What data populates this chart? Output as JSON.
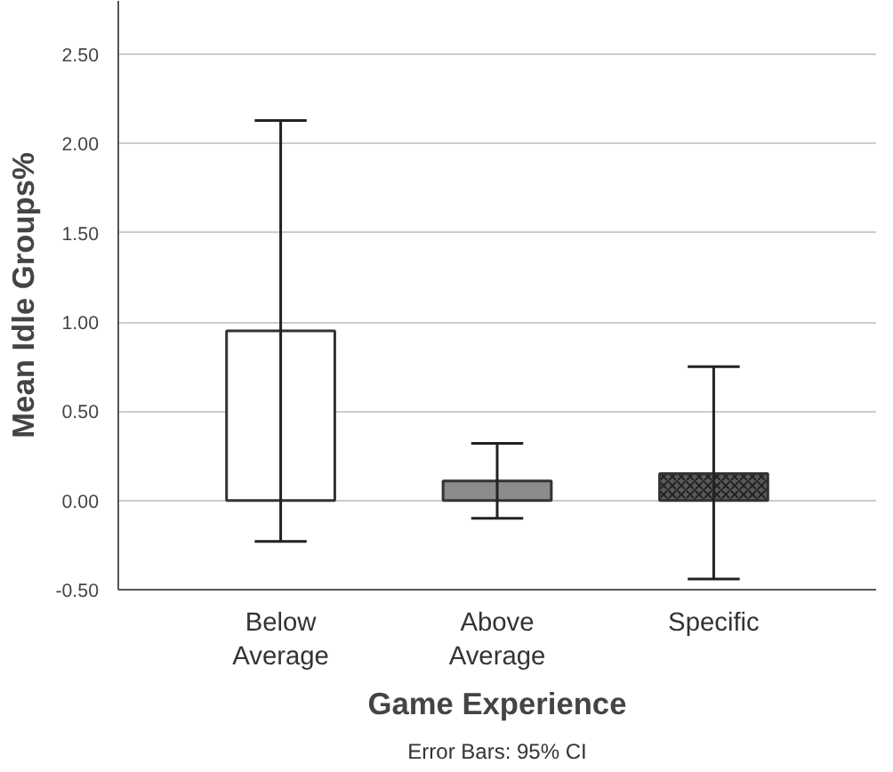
{
  "chart_data": {
    "type": "bar",
    "categories": [
      "Below\nAverage",
      "Above\nAverage",
      "Specific"
    ],
    "values": [
      0.95,
      0.11,
      0.15
    ],
    "colors": [
      "#ffffff",
      "#8c8c8c",
      "#595959"
    ],
    "errors": [
      [
        -0.23,
        2.13
      ],
      [
        -0.1,
        0.32
      ],
      [
        -0.44,
        0.75
      ]
    ],
    "xlabel": "Game Experience",
    "ylabel": "Mean Idle Groups%",
    "ylim": [
      -0.5,
      2.8
    ],
    "yticks": [
      {
        "value": -0.5,
        "label": "-0.50"
      },
      {
        "value": 0,
        "label": "0.00"
      },
      {
        "value": 0.5,
        "label": "0.50"
      },
      {
        "value": 1,
        "label": "1.00"
      },
      {
        "value": 1.5,
        "label": "1.50"
      },
      {
        "value": 2,
        "label": "2.00"
      },
      {
        "value": 2.5,
        "label": "2.50"
      }
    ],
    "grid": "y",
    "annotations": [
      "Error Bars: 95% CI"
    ]
  }
}
